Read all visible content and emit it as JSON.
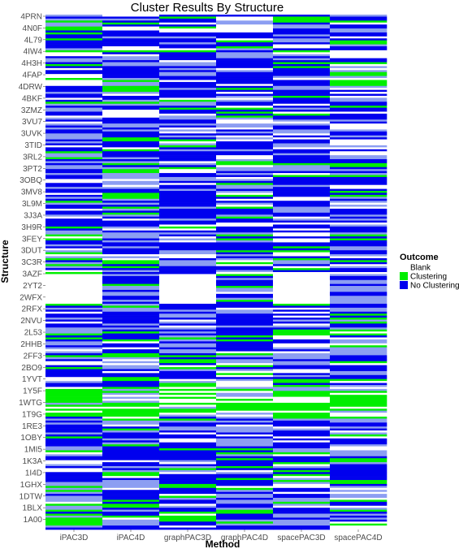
{
  "chart_data": {
    "type": "heatmap",
    "title": "Cluster Results By Structure",
    "xlabel": "Method",
    "ylabel": "Structure",
    "methods": [
      "iPAC3D",
      "iPAC4D",
      "graphPAC3D",
      "graphPAC4D",
      "spacePAC3D",
      "spacePAC4D"
    ],
    "structure_ticks": [
      "4PRN",
      "4N0F",
      "4L79",
      "4IW4",
      "4H3H",
      "4FAP",
      "4DRW",
      "4BKF",
      "3ZMZ",
      "3VU7",
      "3UVK",
      "3TID",
      "3RL2",
      "3PT2",
      "3OBQ",
      "3MV8",
      "3L9M",
      "3J3A",
      "3H9R",
      "3FEY",
      "3DUT",
      "3C3R",
      "3AZF",
      "2YT2",
      "2WFX",
      "2RFX",
      "2NVU",
      "2L53",
      "2HHB",
      "2FF3",
      "2BO9",
      "1YVT",
      "1Y5F",
      "1WTG",
      "1T9G",
      "1RE3",
      "1OBY",
      "1MI5",
      "1K3A",
      "1I4D",
      "1GHX",
      "1DTW",
      "1BLX",
      "1A00"
    ],
    "outcomes": [
      {
        "name": "Blank",
        "color": "#ffffff"
      },
      {
        "name": "Clustering",
        "color": "#00ee00"
      },
      {
        "name": "No Clustering",
        "color": "#0000ee"
      }
    ],
    "legend": {
      "title": "Outcome",
      "position": "right"
    },
    "grid": false
  }
}
